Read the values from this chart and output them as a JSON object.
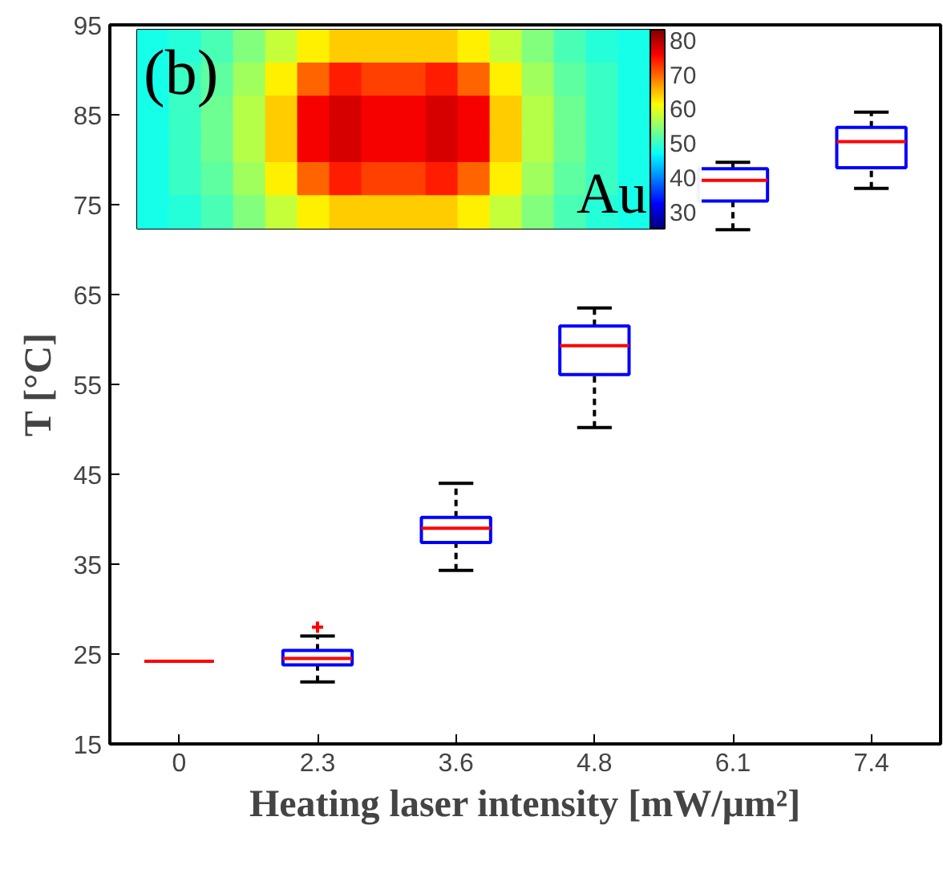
{
  "chart_data": [
    {
      "type": "box",
      "xlabel": "Heating laser intensity [mW/μm²]",
      "ylabel": "T [°C]",
      "categories": [
        "0",
        "2.3",
        "3.6",
        "4.8",
        "6.1",
        "7.4"
      ],
      "ylim": [
        15,
        95
      ],
      "yticks": [
        15,
        25,
        35,
        45,
        55,
        65,
        75,
        85,
        95
      ],
      "grid": false,
      "series": [
        {
          "color": "#0000ff",
          "boxes": [
            {
              "low": 24.2,
              "q1": 24.2,
              "median": 24.2,
              "q3": 24.2,
              "high": 24.2
            },
            {
              "low": 21.9,
              "q1": 23.8,
              "median": 24.5,
              "q3": 25.4,
              "high": 27.0,
              "outliers": [
                28.0
              ]
            },
            {
              "low": 34.3,
              "q1": 37.4,
              "median": 39.0,
              "q3": 40.2,
              "high": 44.0
            },
            {
              "low": 50.2,
              "q1": 56.1,
              "median": 59.3,
              "q3": 61.5,
              "high": 63.5
            },
            {
              "low": 72.2,
              "q1": 75.4,
              "median": 77.7,
              "q3": 79.0,
              "high": 79.7
            },
            {
              "low": 76.8,
              "q1": 79.1,
              "median": 82.0,
              "q3": 83.6,
              "high": 85.3
            }
          ]
        }
      ]
    },
    {
      "type": "heatmap",
      "annotations": [
        "(b)",
        "Au"
      ],
      "categories": [
        null,
        null,
        null,
        null,
        null,
        null,
        null,
        null,
        null,
        null,
        null,
        null,
        null,
        null,
        null,
        null
      ],
      "y_categories": [
        null,
        null,
        null,
        null,
        null,
        null
      ],
      "clim": [
        25,
        83
      ],
      "cticks": [
        30,
        40,
        50,
        60,
        70,
        80
      ],
      "cells": [
        [
          48,
          49,
          51,
          54,
          58,
          62,
          64,
          64,
          64,
          64,
          62,
          58,
          54,
          51,
          49,
          48
        ],
        [
          48,
          50,
          52,
          56,
          62,
          70,
          74,
          72,
          72,
          74,
          70,
          62,
          56,
          52,
          50,
          48
        ],
        [
          48,
          50,
          53,
          57,
          64,
          76,
          78,
          76,
          76,
          78,
          76,
          64,
          57,
          53,
          50,
          48
        ],
        [
          48,
          50,
          53,
          57,
          64,
          76,
          78,
          76,
          76,
          78,
          76,
          64,
          57,
          53,
          50,
          48
        ],
        [
          48,
          50,
          52,
          56,
          62,
          70,
          74,
          72,
          72,
          74,
          70,
          62,
          56,
          52,
          50,
          48
        ],
        [
          48,
          49,
          51,
          54,
          58,
          62,
          64,
          64,
          64,
          64,
          62,
          58,
          54,
          51,
          49,
          48
        ]
      ]
    }
  ]
}
